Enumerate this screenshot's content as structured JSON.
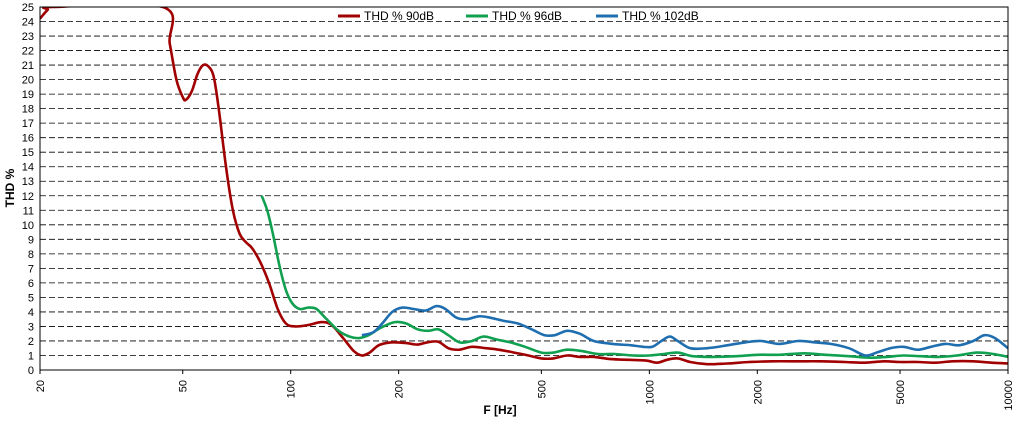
{
  "chart_data": {
    "type": "line",
    "title": "",
    "xlabel": "F [Hz]",
    "ylabel": "THD %",
    "xscale": "log",
    "xlim": [
      20,
      10000
    ],
    "ylim": [
      0,
      25
    ],
    "grid": true,
    "legend_position": "top",
    "x_ticks": [
      20,
      50,
      100,
      200,
      500,
      1000,
      2000,
      5000,
      10000
    ],
    "x_tick_labels": [
      "20",
      "50",
      "100",
      "200",
      "500",
      "1000",
      "2000",
      "5000",
      "10000"
    ],
    "y_ticks": [
      0,
      1,
      2,
      3,
      4,
      5,
      6,
      7,
      8,
      9,
      10,
      11,
      12,
      13,
      14,
      15,
      16,
      17,
      18,
      19,
      20,
      21,
      22,
      23,
      24,
      25
    ],
    "y_tick_labels": [
      "0",
      "1",
      "2",
      "3",
      "4",
      "5",
      "6",
      "7",
      "8",
      "9",
      "10",
      "11",
      "12",
      "13",
      "14",
      "15",
      "16",
      "17",
      "18",
      "19",
      "20",
      "21",
      "22",
      "23",
      "24",
      "25"
    ],
    "series": [
      {
        "name": "THD % 90dB",
        "color": "#a00000",
        "points": [
          [
            20,
            24.2
          ],
          [
            21,
            24.8
          ],
          [
            21.7,
            25.0
          ],
          [
            44,
            25.0
          ],
          [
            46,
            22.5
          ],
          [
            48,
            20.0
          ],
          [
            50,
            18.8
          ],
          [
            51,
            18.6
          ],
          [
            53,
            19.2
          ],
          [
            55,
            20.4
          ],
          [
            57,
            21.0
          ],
          [
            59,
            20.9
          ],
          [
            61,
            20.2
          ],
          [
            63,
            18.0
          ],
          [
            66,
            14.0
          ],
          [
            69,
            11.0
          ],
          [
            72,
            9.4
          ],
          [
            75,
            8.8
          ],
          [
            78,
            8.4
          ],
          [
            82,
            7.5
          ],
          [
            87,
            6.0
          ],
          [
            92,
            4.2
          ],
          [
            97,
            3.2
          ],
          [
            103,
            3.0
          ],
          [
            112,
            3.1
          ],
          [
            122,
            3.3
          ],
          [
            130,
            3.1
          ],
          [
            140,
            2.2
          ],
          [
            150,
            1.3
          ],
          [
            158,
            1.0
          ],
          [
            166,
            1.2
          ],
          [
            176,
            1.7
          ],
          [
            190,
            1.9
          ],
          [
            210,
            1.85
          ],
          [
            225,
            1.75
          ],
          [
            240,
            1.9
          ],
          [
            258,
            1.95
          ],
          [
            275,
            1.5
          ],
          [
            295,
            1.4
          ],
          [
            320,
            1.6
          ],
          [
            350,
            1.5
          ],
          [
            380,
            1.4
          ],
          [
            420,
            1.2
          ],
          [
            460,
            1.0
          ],
          [
            500,
            0.8
          ],
          [
            540,
            0.8
          ],
          [
            590,
            1.0
          ],
          [
            640,
            0.9
          ],
          [
            700,
            0.9
          ],
          [
            780,
            0.75
          ],
          [
            880,
            0.7
          ],
          [
            980,
            0.65
          ],
          [
            1050,
            0.5
          ],
          [
            1120,
            0.7
          ],
          [
            1200,
            0.8
          ],
          [
            1300,
            0.55
          ],
          [
            1450,
            0.4
          ],
          [
            1650,
            0.45
          ],
          [
            1900,
            0.55
          ],
          [
            2200,
            0.6
          ],
          [
            2600,
            0.6
          ],
          [
            3000,
            0.6
          ],
          [
            3500,
            0.55
          ],
          [
            4000,
            0.5
          ],
          [
            4500,
            0.6
          ],
          [
            5000,
            0.55
          ],
          [
            5600,
            0.55
          ],
          [
            6300,
            0.5
          ],
          [
            7000,
            0.6
          ],
          [
            8000,
            0.6
          ],
          [
            9000,
            0.5
          ],
          [
            10000,
            0.45
          ]
        ]
      },
      {
        "name": "THD % 96dB",
        "color": "#10a050",
        "points": [
          [
            83,
            12.0
          ],
          [
            86,
            11.0
          ],
          [
            89,
            9.5
          ],
          [
            93,
            7.2
          ],
          [
            97,
            5.5
          ],
          [
            101,
            4.6
          ],
          [
            106,
            4.2
          ],
          [
            112,
            4.3
          ],
          [
            118,
            4.2
          ],
          [
            126,
            3.5
          ],
          [
            136,
            2.7
          ],
          [
            146,
            2.3
          ],
          [
            155,
            2.2
          ],
          [
            165,
            2.4
          ],
          [
            178,
            2.9
          ],
          [
            195,
            3.3
          ],
          [
            210,
            3.2
          ],
          [
            226,
            2.8
          ],
          [
            242,
            2.7
          ],
          [
            258,
            2.8
          ],
          [
            275,
            2.4
          ],
          [
            296,
            1.9
          ],
          [
            320,
            2.0
          ],
          [
            345,
            2.3
          ],
          [
            375,
            2.1
          ],
          [
            410,
            1.9
          ],
          [
            450,
            1.6
          ],
          [
            500,
            1.2
          ],
          [
            540,
            1.2
          ],
          [
            590,
            1.4
          ],
          [
            650,
            1.3
          ],
          [
            720,
            1.1
          ],
          [
            800,
            1.1
          ],
          [
            900,
            1.0
          ],
          [
            1000,
            1.0
          ],
          [
            1100,
            1.1
          ],
          [
            1200,
            1.2
          ],
          [
            1320,
            0.95
          ],
          [
            1500,
            0.9
          ],
          [
            1750,
            0.95
          ],
          [
            2000,
            1.05
          ],
          [
            2300,
            1.05
          ],
          [
            2700,
            1.15
          ],
          [
            3100,
            1.05
          ],
          [
            3600,
            0.95
          ],
          [
            4100,
            0.85
          ],
          [
            4600,
            0.9
          ],
          [
            5100,
            1.0
          ],
          [
            5700,
            0.95
          ],
          [
            6400,
            0.9
          ],
          [
            7200,
            1.0
          ],
          [
            8200,
            1.2
          ],
          [
            9100,
            1.1
          ],
          [
            10000,
            0.9
          ]
        ]
      },
      {
        "name": "THD % 102dB",
        "color": "#1f6fb0",
        "points": [
          [
            158,
            2.4
          ],
          [
            170,
            2.6
          ],
          [
            180,
            3.2
          ],
          [
            192,
            4.0
          ],
          [
            205,
            4.3
          ],
          [
            220,
            4.2
          ],
          [
            238,
            4.1
          ],
          [
            255,
            4.4
          ],
          [
            270,
            4.2
          ],
          [
            290,
            3.6
          ],
          [
            310,
            3.5
          ],
          [
            335,
            3.7
          ],
          [
            360,
            3.6
          ],
          [
            390,
            3.4
          ],
          [
            430,
            3.2
          ],
          [
            470,
            2.8
          ],
          [
            510,
            2.4
          ],
          [
            545,
            2.4
          ],
          [
            590,
            2.7
          ],
          [
            640,
            2.5
          ],
          [
            700,
            2.0
          ],
          [
            790,
            1.8
          ],
          [
            890,
            1.7
          ],
          [
            960,
            1.6
          ],
          [
            1020,
            1.6
          ],
          [
            1080,
            2.0
          ],
          [
            1140,
            2.3
          ],
          [
            1200,
            2.0
          ],
          [
            1300,
            1.5
          ],
          [
            1450,
            1.5
          ],
          [
            1650,
            1.7
          ],
          [
            1850,
            1.9
          ],
          [
            2050,
            2.0
          ],
          [
            2300,
            1.8
          ],
          [
            2600,
            2.0
          ],
          [
            2900,
            1.9
          ],
          [
            3200,
            1.8
          ],
          [
            3600,
            1.5
          ],
          [
            4000,
            1.0
          ],
          [
            4300,
            1.2
          ],
          [
            4700,
            1.5
          ],
          [
            5100,
            1.6
          ],
          [
            5600,
            1.4
          ],
          [
            6100,
            1.6
          ],
          [
            6700,
            1.8
          ],
          [
            7300,
            1.7
          ],
          [
            8000,
            2.0
          ],
          [
            8600,
            2.4
          ],
          [
            9200,
            2.2
          ],
          [
            10000,
            1.5
          ]
        ]
      }
    ]
  }
}
